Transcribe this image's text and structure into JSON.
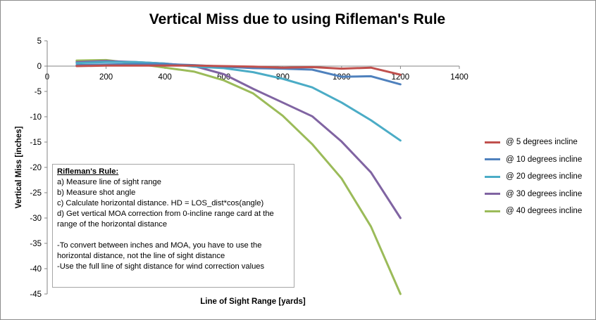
{
  "chart_data": {
    "type": "line",
    "title": "Vertical Miss due to using Rifleman's Rule",
    "xlabel": "Line of Sight Range  [yards]",
    "ylabel": "Vertical Miss  [inches]",
    "xlim": [
      0,
      1400
    ],
    "ylim": [
      -45,
      5
    ],
    "xticks": [
      "0",
      "200",
      "400",
      "600",
      "800",
      "1000",
      "1200",
      "1400"
    ],
    "yticks": [
      "5",
      "0",
      "-5",
      "-10",
      "-15",
      "-20",
      "-25",
      "-30",
      "-35",
      "-40",
      "-45"
    ],
    "x": [
      100,
      200,
      300,
      400,
      500,
      600,
      700,
      800,
      900,
      1000,
      1100,
      1200
    ],
    "grid": false,
    "legend_position": "right",
    "series": [
      {
        "name": "@ 5 degrees incline",
        "color": "#c0504d",
        "values": [
          0.0,
          0.1,
          0.1,
          0.1,
          0.1,
          0.0,
          -0.1,
          -0.3,
          -0.2,
          -0.5,
          -0.3,
          -1.7
        ]
      },
      {
        "name": "@ 10 degrees incline",
        "color": "#4f81bd",
        "values": [
          0.2,
          0.3,
          0.4,
          0.4,
          0.2,
          -0.1,
          -0.4,
          -0.5,
          -0.7,
          -2.1,
          -2.0,
          -3.6
        ]
      },
      {
        "name": "@ 20 degrees incline",
        "color": "#4bacc6",
        "values": [
          0.6,
          0.8,
          0.8,
          0.5,
          -0.1,
          -0.4,
          -1.2,
          -2.5,
          -4.2,
          -7.2,
          -10.7,
          -14.7
        ]
      },
      {
        "name": "@ 30 degrees incline",
        "color": "#8064a2",
        "values": [
          0.8,
          1.0,
          0.8,
          0.5,
          0.0,
          -1.6,
          -4.5,
          -7.2,
          -9.9,
          -14.9,
          -21.0,
          -30.0
        ]
      },
      {
        "name": "@ 40 degrees incline",
        "color": "#9bbb59",
        "values": [
          1.1,
          1.2,
          0.5,
          -0.3,
          -1.1,
          -2.8,
          -5.4,
          -9.8,
          -15.4,
          -22.2,
          -31.7,
          -45.0
        ]
      }
    ]
  },
  "annotation": {
    "title": "Rifleman's Rule:",
    "lines_a": [
      "a)  Measure line of sight range",
      "b)  Measure shot angle",
      "c)  Calculate horizontal distance.  HD = LOS_dist*cos(angle)",
      "d)  Get vertical MOA correction from 0-incline range card at the range of the horizontal distance"
    ],
    "lines_b": [
      "-To convert between inches and MOA, you have to use the horizontal distance, not the line of sight distance",
      "-Use the full line of sight distance for wind correction values"
    ]
  }
}
